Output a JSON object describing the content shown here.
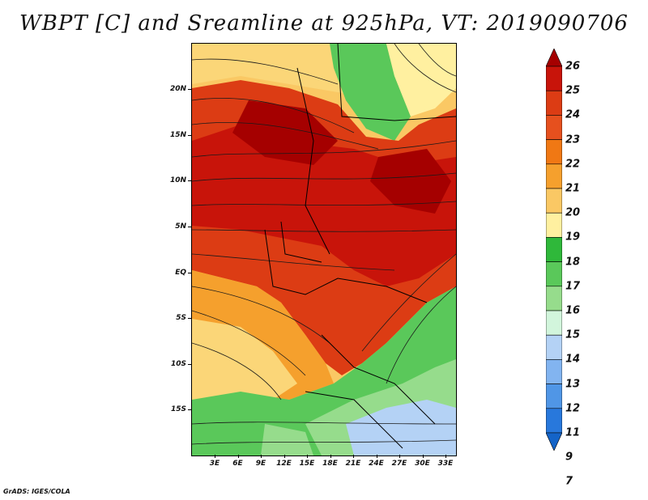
{
  "title": "WBPT [C] and Sreamline at 925hPa, VT: 2019090706",
  "credit": "GrADS: IGES/COLA",
  "map": {
    "lat_labels": [
      "20N",
      "15N",
      "10N",
      "5N",
      "EQ",
      "5S",
      "10S",
      "15S"
    ],
    "lon_labels": [
      "3E",
      "6E",
      "9E",
      "12E",
      "15E",
      "18E",
      "21E",
      "24E",
      "27E",
      "30E",
      "33E"
    ]
  },
  "colorbar": {
    "levels": [
      "26",
      "25",
      "24",
      "23",
      "22",
      "21",
      "20",
      "19",
      "18",
      "17",
      "16",
      "15",
      "14",
      "13",
      "12",
      "11",
      "9",
      "7"
    ],
    "colors": [
      "#a50000",
      "#c8140a",
      "#dc3c14",
      "#e6501e",
      "#f07814",
      "#f5a02d",
      "#fac864",
      "#fff0a0",
      "#2fb83a",
      "#5ac85a",
      "#96dc8c",
      "#d2f5dc",
      "#b4d2f5",
      "#82b4f0",
      "#5096e6",
      "#2878dc",
      "#1464c8"
    ]
  }
}
